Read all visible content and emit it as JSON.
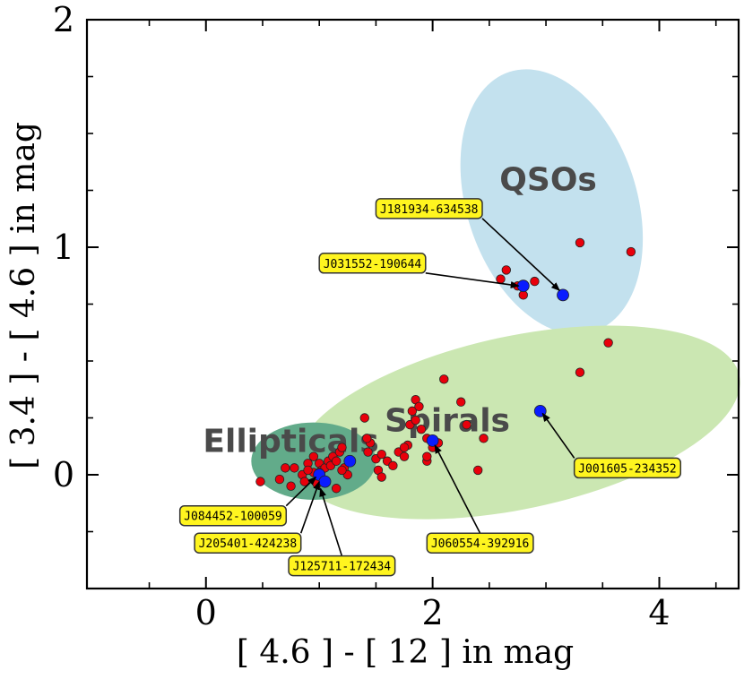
{
  "chart_data": {
    "type": "scatter",
    "xlabel": "[ 4.6 ] - [ 12 ] in mag",
    "ylabel": "[ 3.4 ] - [ 4.6 ] in mag",
    "xlim": [
      -1.05,
      4.7
    ],
    "ylim": [
      -0.5,
      2.0
    ],
    "xticks": [
      0,
      2,
      4
    ],
    "yticks": [
      0,
      1,
      2
    ],
    "minor_xticks": [
      -0.5,
      0.5,
      1,
      1.5,
      2.5,
      3,
      3.5,
      4.5
    ],
    "minor_yticks": [
      -0.25,
      0.25,
      0.5,
      0.75,
      1.25,
      1.5,
      1.75
    ],
    "colors": {
      "sample": "#e8000b",
      "highlight": "#0a1cff",
      "qso_region": "#c3e1ee",
      "spiral_region": "#cbe7b2",
      "elliptical_region": "#62ab8a",
      "callout_fill": "#fff51f"
    },
    "regions": [
      {
        "name": "QSOs",
        "cx": 3.05,
        "cy": 1.2,
        "rx": 0.75,
        "ry": 0.6,
        "angle": 18,
        "color": "#c3e1ee"
      },
      {
        "name": "Spirals",
        "cx": 2.75,
        "cy": 0.23,
        "rx": 2.0,
        "ry": 0.38,
        "angle": 12,
        "color": "#cbe7b2"
      },
      {
        "name": "Ellipticals",
        "cx": 0.95,
        "cy": 0.06,
        "rx": 0.55,
        "ry": 0.17,
        "angle": 0,
        "color": "#62ab8a"
      }
    ],
    "region_labels": [
      {
        "text": "QSOs",
        "x": 3.02,
        "y": 1.25
      },
      {
        "text": "Spirals",
        "x": 2.13,
        "y": 0.19
      },
      {
        "text": "Ellipticals",
        "x": 0.75,
        "y": 0.1
      }
    ],
    "series": [
      {
        "name": "sample",
        "x": [
          0.48,
          0.65,
          0.7,
          0.75,
          0.78,
          0.85,
          0.87,
          0.9,
          0.95,
          0.95,
          0.98,
          1.0,
          1.02,
          1.05,
          1.08,
          1.1,
          1.12,
          1.15,
          1.18,
          1.2,
          1.22,
          1.25,
          1.4,
          1.45,
          1.5,
          1.52,
          1.55,
          1.6,
          1.65,
          1.7,
          1.75,
          1.78,
          1.8,
          1.82,
          1.85,
          1.88,
          1.9,
          1.95,
          2.0,
          2.05,
          2.25,
          2.3,
          2.45,
          2.6,
          2.65,
          2.75,
          2.8,
          2.9,
          3.3,
          3.3,
          3.55,
          3.75,
          1.15,
          1.42,
          1.43,
          1.2,
          1.85,
          1.55,
          2.1,
          1.95,
          0.9,
          1.0,
          1.95,
          1.75,
          2.4
        ],
        "y": [
          -0.03,
          -0.02,
          0.03,
          -0.05,
          0.03,
          0.0,
          -0.03,
          0.05,
          0.01,
          0.08,
          -0.04,
          0.05,
          0.02,
          0.03,
          0.06,
          0.04,
          0.08,
          0.06,
          0.1,
          0.12,
          0.03,
          0.0,
          0.25,
          0.14,
          0.07,
          0.02,
          0.09,
          0.06,
          0.04,
          0.1,
          0.08,
          0.13,
          0.22,
          0.28,
          0.33,
          0.3,
          0.2,
          0.16,
          0.12,
          0.14,
          0.32,
          0.22,
          0.16,
          0.86,
          0.9,
          0.83,
          0.79,
          0.85,
          1.02,
          0.45,
          0.58,
          0.98,
          -0.06,
          0.16,
          0.1,
          0.02,
          0.24,
          -0.01,
          0.42,
          0.06,
          0.02,
          0.01,
          0.08,
          0.12,
          0.02
        ],
        "color": "#e8000b"
      },
      {
        "name": "highlighted",
        "x": [
          1.0,
          1.05,
          1.27,
          2.0,
          2.95,
          2.8,
          3.15
        ],
        "y": [
          0.0,
          -0.03,
          0.06,
          0.15,
          0.28,
          0.83,
          0.79
        ],
        "color": "#0a1cff"
      }
    ],
    "annotations": [
      {
        "text": "J181934-634538",
        "box_x": 1.5,
        "box_y": 1.17,
        "target_x": 3.12,
        "target_y": 0.81
      },
      {
        "text": "J031552-190644",
        "box_x": 1.0,
        "box_y": 0.93,
        "target_x": 2.76,
        "target_y": 0.83
      },
      {
        "text": "J001605-234352",
        "box_x": 3.25,
        "box_y": 0.03,
        "target_x": 2.97,
        "target_y": 0.27
      },
      {
        "text": "J060554-392916",
        "box_x": 1.95,
        "box_y": -0.3,
        "target_x": 2.02,
        "target_y": 0.13
      },
      {
        "text": "J084452-100059",
        "box_x": -0.23,
        "box_y": -0.18,
        "target_x": 0.97,
        "target_y": -0.01
      },
      {
        "text": "J205401-424238",
        "box_x": -0.1,
        "box_y": -0.3,
        "target_x": 1.0,
        "target_y": -0.03
      },
      {
        "text": "J125711-172434",
        "box_x": 0.73,
        "box_y": -0.4,
        "target_x": 1.01,
        "target_y": -0.06
      }
    ]
  }
}
